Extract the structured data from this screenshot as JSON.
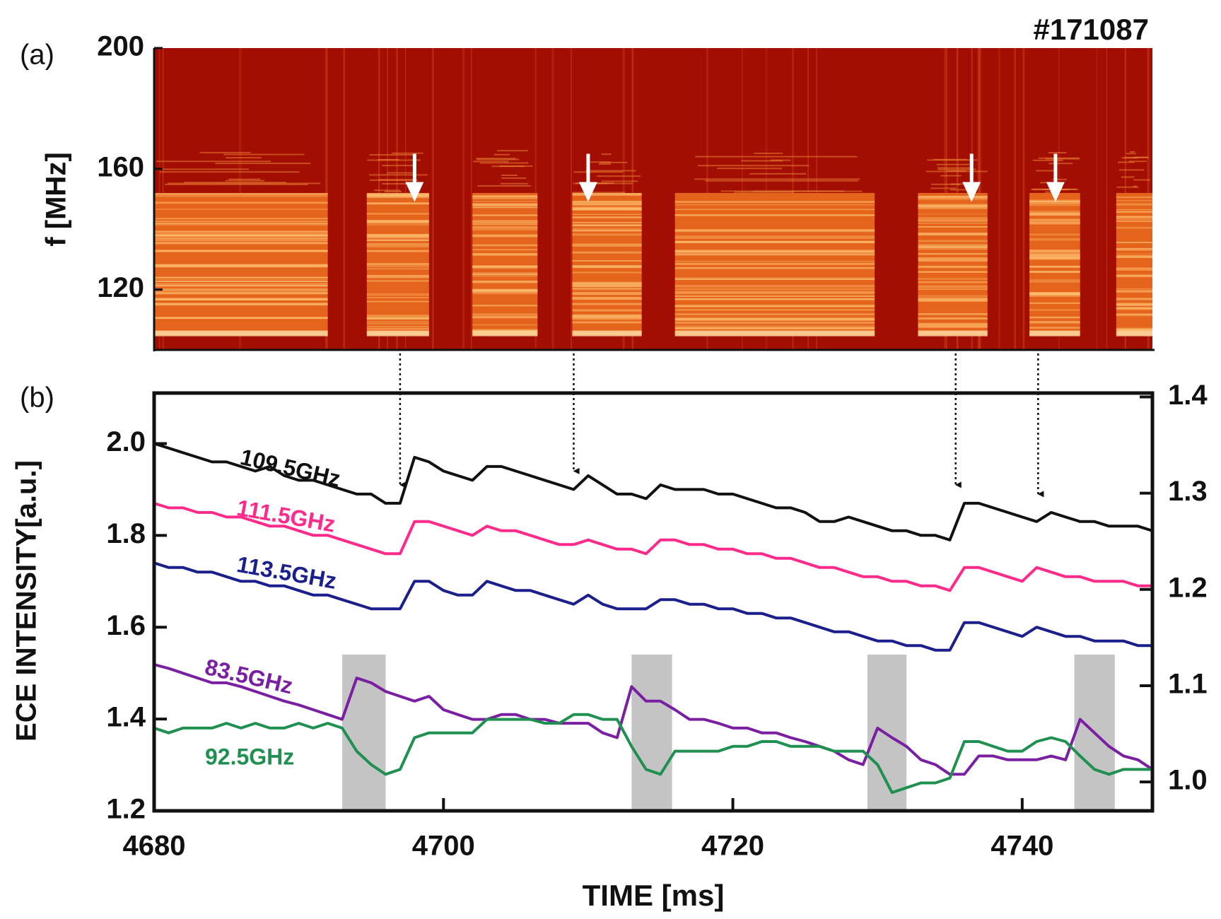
{
  "chart_data": [
    {
      "type": "spectrogram",
      "label": "(a)",
      "annotation": "#171087",
      "ylabel": "f [MHz]",
      "xlim": [
        4680,
        4749
      ],
      "ylim": [
        100,
        200
      ],
      "yticks": [
        120,
        160,
        200
      ],
      "bursts": [
        [
          4680,
          4692
        ],
        [
          4694.7,
          4699
        ],
        [
          4702,
          4706.5
        ],
        [
          4708.9,
          4713.7
        ],
        [
          4716,
          4729.8
        ],
        [
          4732.8,
          4737.6
        ],
        [
          4740.5,
          4744
        ],
        [
          4746.5,
          4749
        ]
      ],
      "burst_flim": [
        105,
        152
      ],
      "arrows": [
        4698,
        4710,
        4736.5,
        4742.3
      ],
      "arrow_flim": [
        165,
        150
      ]
    },
    {
      "type": "line",
      "label": "(b)",
      "xlabel": "TIME [ms]",
      "ylabel": "ECE INTENSITY[a.u.]",
      "xlim": [
        4680,
        4749
      ],
      "xticks": [
        4680,
        4700,
        4720,
        4740
      ],
      "ylim": [
        1.2,
        2.11
      ],
      "yticks": [
        {
          "value": 1.2,
          "label": "1.2"
        },
        {
          "value": 1.4,
          "label": "1.4"
        },
        {
          "value": 1.6,
          "label": "1.6"
        },
        {
          "value": 1.8,
          "label": "1.8"
        },
        {
          "value": 2,
          "label": "2.0"
        }
      ],
      "y2lim": [
        0.97,
        1.404
      ],
      "y2ticks": [
        {
          "value": 1,
          "label": "1.0"
        },
        1.1,
        1.2,
        1.3,
        1.4
      ],
      "spans": [
        [
          4693,
          4696
        ],
        [
          4713,
          4715.8
        ],
        [
          4729.3,
          4732
        ],
        [
          4743.6,
          4746.4
        ]
      ],
      "events": [
        4697,
        4709,
        4735.4,
        4741.1
      ],
      "x": [
        4680,
        4681,
        4682,
        4683,
        4684,
        4685,
        4686,
        4687,
        4688,
        4689,
        4690,
        4691,
        4692,
        4693,
        4694,
        4695,
        4696,
        4697,
        4698,
        4699,
        4700,
        4701,
        4702,
        4703,
        4704,
        4705,
        4706,
        4707,
        4708,
        4709,
        4710,
        4711,
        4712,
        4713,
        4714,
        4715,
        4716,
        4717,
        4718,
        4719,
        4720,
        4721,
        4722,
        4723,
        4724,
        4725,
        4726,
        4727,
        4728,
        4729,
        4730,
        4731,
        4732,
        4733,
        4734,
        4735,
        4736,
        4737,
        4738,
        4739,
        4740,
        4741,
        4742,
        4743,
        4744,
        4745,
        4746,
        4747,
        4748,
        4749
      ],
      "series": [
        {
          "name": "109.5GHz",
          "color": "#111111",
          "values": [
            2.0,
            1.99,
            1.98,
            1.97,
            1.96,
            1.96,
            1.95,
            1.94,
            1.95,
            1.93,
            1.92,
            1.92,
            1.91,
            1.9,
            1.89,
            1.89,
            1.87,
            1.87,
            1.97,
            1.96,
            1.94,
            1.93,
            1.92,
            1.95,
            1.95,
            1.94,
            1.93,
            1.92,
            1.91,
            1.9,
            1.93,
            1.91,
            1.89,
            1.89,
            1.88,
            1.91,
            1.9,
            1.9,
            1.9,
            1.89,
            1.89,
            1.88,
            1.87,
            1.86,
            1.86,
            1.85,
            1.83,
            1.83,
            1.84,
            1.83,
            1.82,
            1.81,
            1.81,
            1.8,
            1.8,
            1.79,
            1.87,
            1.87,
            1.86,
            1.85,
            1.84,
            1.83,
            1.85,
            1.84,
            1.83,
            1.83,
            1.82,
            1.82,
            1.82,
            1.81
          ]
        },
        {
          "name": "111.5GHz",
          "color": "#ff2a8a",
          "values": [
            1.87,
            1.86,
            1.86,
            1.85,
            1.85,
            1.84,
            1.84,
            1.83,
            1.82,
            1.82,
            1.81,
            1.8,
            1.8,
            1.79,
            1.78,
            1.77,
            1.76,
            1.76,
            1.83,
            1.83,
            1.82,
            1.81,
            1.8,
            1.82,
            1.81,
            1.81,
            1.8,
            1.79,
            1.78,
            1.78,
            1.79,
            1.78,
            1.77,
            1.77,
            1.76,
            1.79,
            1.79,
            1.78,
            1.78,
            1.77,
            1.77,
            1.76,
            1.76,
            1.75,
            1.75,
            1.74,
            1.73,
            1.73,
            1.72,
            1.71,
            1.71,
            1.7,
            1.7,
            1.69,
            1.69,
            1.68,
            1.73,
            1.73,
            1.72,
            1.71,
            1.7,
            1.73,
            1.72,
            1.71,
            1.71,
            1.7,
            1.7,
            1.7,
            1.69,
            1.69
          ]
        },
        {
          "name": "113.5GHz",
          "color": "#1a1f8c",
          "values": [
            1.74,
            1.73,
            1.73,
            1.72,
            1.72,
            1.71,
            1.7,
            1.7,
            1.69,
            1.69,
            1.68,
            1.67,
            1.67,
            1.66,
            1.65,
            1.64,
            1.64,
            1.64,
            1.7,
            1.7,
            1.68,
            1.67,
            1.67,
            1.7,
            1.69,
            1.68,
            1.68,
            1.67,
            1.66,
            1.65,
            1.67,
            1.65,
            1.64,
            1.64,
            1.64,
            1.66,
            1.66,
            1.65,
            1.65,
            1.64,
            1.64,
            1.63,
            1.63,
            1.62,
            1.62,
            1.61,
            1.6,
            1.59,
            1.59,
            1.58,
            1.57,
            1.57,
            1.56,
            1.56,
            1.55,
            1.55,
            1.61,
            1.61,
            1.6,
            1.59,
            1.58,
            1.6,
            1.59,
            1.58,
            1.58,
            1.57,
            1.57,
            1.57,
            1.56,
            1.56
          ]
        },
        {
          "name": "83.5GHz",
          "color": "#7b1fa2",
          "axis": "y2",
          "values": [
            1.122,
            1.118,
            1.113,
            1.108,
            1.103,
            1.103,
            1.099,
            1.094,
            1.089,
            1.084,
            1.08,
            1.075,
            1.07,
            1.065,
            1.108,
            1.103,
            1.094,
            1.089,
            1.084,
            1.089,
            1.075,
            1.07,
            1.065,
            1.065,
            1.07,
            1.07,
            1.065,
            1.065,
            1.061,
            1.061,
            1.061,
            1.051,
            1.046,
            1.099,
            1.084,
            1.084,
            1.075,
            1.065,
            1.065,
            1.061,
            1.056,
            1.056,
            1.051,
            1.051,
            1.046,
            1.042,
            1.037,
            1.032,
            1.023,
            1.018,
            1.056,
            1.046,
            1.037,
            1.023,
            1.018,
            1.008,
            1.008,
            1.027,
            1.027,
            1.023,
            1.023,
            1.023,
            1.027,
            1.023,
            1.065,
            1.051,
            1.037,
            1.027,
            1.023,
            1.013
          ]
        },
        {
          "name": "92.5GHz",
          "color": "#1f9050",
          "axis": "y2",
          "values": [
            1.056,
            1.051,
            1.056,
            1.056,
            1.056,
            1.061,
            1.056,
            1.061,
            1.056,
            1.056,
            1.061,
            1.056,
            1.061,
            1.056,
            1.032,
            1.018,
            1.008,
            1.013,
            1.046,
            1.051,
            1.051,
            1.051,
            1.051,
            1.065,
            1.065,
            1.065,
            1.065,
            1.061,
            1.061,
            1.07,
            1.07,
            1.065,
            1.065,
            1.037,
            1.013,
            1.008,
            1.032,
            1.032,
            1.032,
            1.032,
            1.037,
            1.037,
            1.042,
            1.042,
            1.037,
            1.037,
            1.037,
            1.032,
            1.032,
            1.032,
            1.018,
            0.989,
            0.994,
            0.999,
            0.999,
            1.004,
            1.042,
            1.042,
            1.037,
            1.032,
            1.032,
            1.042,
            1.046,
            1.042,
            1.027,
            1.013,
            1.008,
            1.013,
            1.013,
            1.013
          ]
        }
      ]
    }
  ]
}
